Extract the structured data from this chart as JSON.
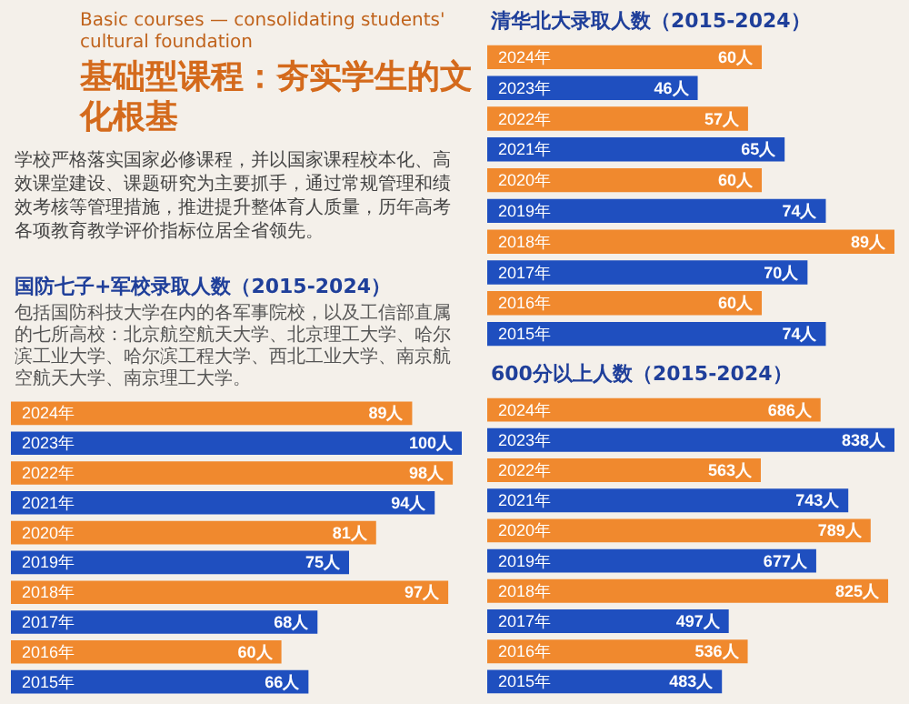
{
  "chart_data": [
    {
      "type": "other",
      "subtitle": "Basic courses — consolidating students' cultural foundation",
      "title": "基础型课程：夯实学生的文化根基",
      "annotations": [
        "学校严格落实国家必修课程，并以国家课程校本化、高效课堂建设、课题研究为主要抓手，通过常规管理和绩效考核等管理措施，推进提升整体育人质量，历年高考各项教育教学评价指标位居全省领先。"
      ]
    },
    {
      "type": "bar",
      "orientation": "horizontal",
      "tick_labels": "y",
      "title": "国防七子+军校录取人数（2015-2024）",
      "annotations": [
        "包括国防科技大学在内的各军事院校，以及工信部直属的七所高校：北京航空航天大学、北京理工大学、哈尔滨工业大学、哈尔滨工程大学、西北工业大学、南京航空航天大学、南京理工大学。"
      ],
      "categories": [
        "2024年",
        "2023年",
        "2022年",
        "2021年",
        "2020年",
        "2019年",
        "2018年",
        "2017年",
        "2016年",
        "2015年"
      ],
      "values": [
        89,
        100,
        98,
        94,
        81,
        75,
        97,
        68,
        60,
        66
      ],
      "value_labels": [
        "89人",
        "100人",
        "98人",
        "94人",
        "81人",
        "75人",
        "97人",
        "68人",
        "60人",
        "66人"
      ],
      "colors": [
        "#f0892e",
        "#1f4fbf",
        "#f0892e",
        "#1f4fbf",
        "#f0892e",
        "#1f4fbf",
        "#f0892e",
        "#1f4fbf",
        "#f0892e",
        "#1f4fbf"
      ]
    },
    {
      "type": "bar",
      "orientation": "horizontal",
      "tick_labels": "y",
      "title": "清华北大录取人数（2015-2024）",
      "categories": [
        "2024年",
        "2023年",
        "2022年",
        "2021年",
        "2020年",
        "2019年",
        "2018年",
        "2017年",
        "2016年",
        "2015年"
      ],
      "values": [
        60,
        46,
        57,
        65,
        60,
        74,
        89,
        70,
        60,
        74
      ],
      "value_labels": [
        "60人",
        "46人",
        "57人",
        "65人",
        "60人",
        "74人",
        "89人",
        "70人",
        "60人",
        "74人"
      ],
      "colors": [
        "#f0892e",
        "#1f4fbf",
        "#f0892e",
        "#1f4fbf",
        "#f0892e",
        "#1f4fbf",
        "#f0892e",
        "#1f4fbf",
        "#f0892e",
        "#1f4fbf"
      ]
    },
    {
      "type": "bar",
      "orientation": "horizontal",
      "tick_labels": "y",
      "title": "600分以上人数（2015-2024）",
      "categories": [
        "2024年",
        "2023年",
        "2022年",
        "2021年",
        "2020年",
        "2019年",
        "2018年",
        "2017年",
        "2016年",
        "2015年"
      ],
      "values": [
        686,
        838,
        563,
        743,
        789,
        677,
        825,
        497,
        536,
        483
      ],
      "value_labels": [
        "686人",
        "838人",
        "563人",
        "743人",
        "789人",
        "677人",
        "825人",
        "497人",
        "536人",
        "483人"
      ],
      "colors": [
        "#f0892e",
        "#1f4fbf",
        "#f0892e",
        "#1f4fbf",
        "#f0892e",
        "#1f4fbf",
        "#f0892e",
        "#1f4fbf",
        "#f0892e",
        "#1f4fbf"
      ]
    }
  ]
}
